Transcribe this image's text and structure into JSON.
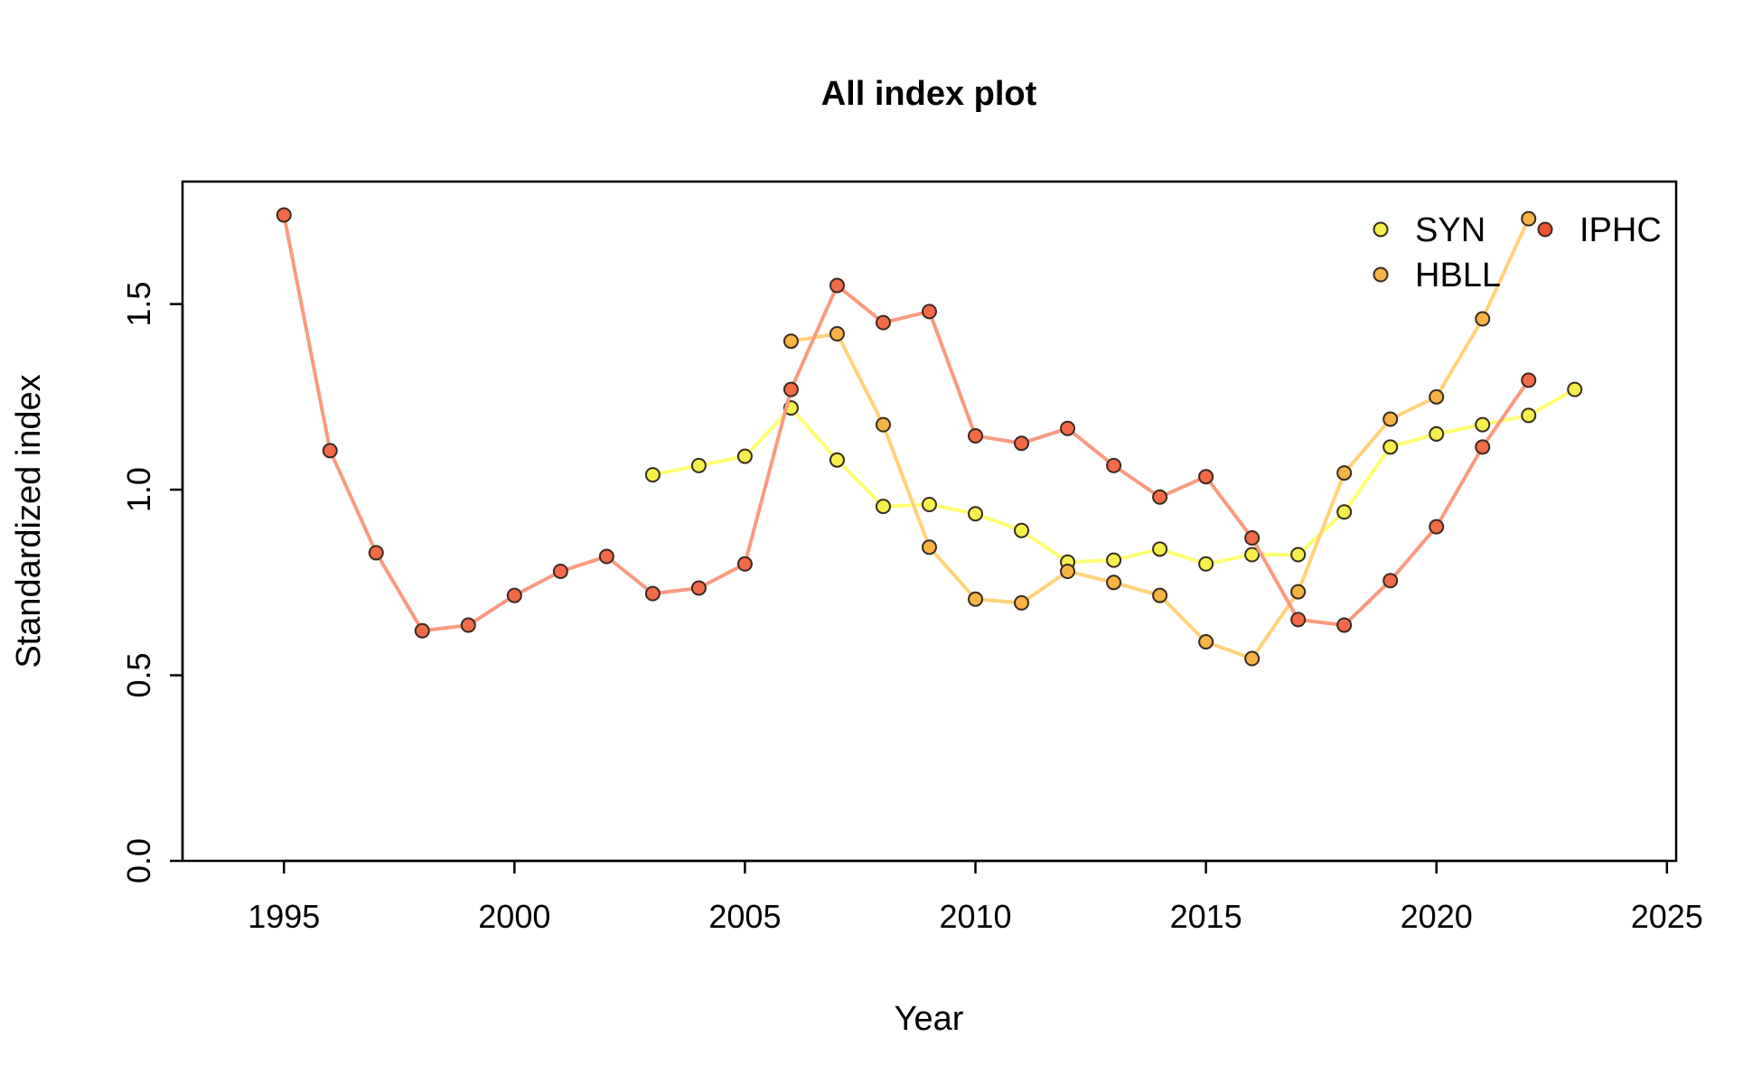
{
  "chart_data": {
    "type": "line",
    "title": "All index plot",
    "xlabel": "Year",
    "ylabel": "Standardized index",
    "xlim": [
      1992.8,
      2025.2
    ],
    "ylim": [
      0,
      1.83
    ],
    "xticks": [
      "1995",
      "2000",
      "2005",
      "2010",
      "2015",
      "2020",
      "2025"
    ],
    "yticks": [
      "0.0",
      "0.5",
      "1.0",
      "1.5"
    ],
    "grid": false,
    "legend_position": "top-right",
    "series": [
      {
        "name": "SYN",
        "line_color": "#FFFF73",
        "point_color": "#F5F04A",
        "x": [
          2003,
          2004,
          2005,
          2006,
          2007,
          2008,
          2009,
          2010,
          2011,
          2012,
          2013,
          2014,
          2015,
          2016,
          2017,
          2018,
          2019,
          2020,
          2021,
          2022,
          2023
        ],
        "y": [
          1.04,
          1.065,
          1.09,
          1.22,
          1.08,
          0.955,
          0.96,
          0.935,
          0.89,
          0.805,
          0.81,
          0.84,
          0.8,
          0.825,
          0.825,
          0.94,
          1.115,
          1.15,
          1.175,
          1.2,
          1.27
        ]
      },
      {
        "name": "HBLL",
        "line_color": "#FFD27A",
        "point_color": "#F6B445",
        "x": [
          2006,
          2007,
          2008,
          2009,
          2010,
          2011,
          2012,
          2013,
          2014,
          2015,
          2016,
          2017,
          2018,
          2019,
          2020,
          2021,
          2022
        ],
        "y": [
          1.4,
          1.42,
          1.175,
          0.845,
          0.705,
          0.695,
          0.78,
          0.75,
          0.715,
          0.59,
          0.545,
          0.725,
          1.045,
          1.19,
          1.25,
          1.46,
          1.73
        ]
      },
      {
        "name": "IPHC",
        "line_color": "#F99A80",
        "point_color": "#F26A48",
        "x": [
          1995,
          1996,
          1997,
          1998,
          1999,
          2000,
          2001,
          2002,
          2003,
          2004,
          2005,
          2006,
          2007,
          2008,
          2009,
          2010,
          2011,
          2012,
          2013,
          2014,
          2015,
          2016,
          2017,
          2018,
          2019,
          2020,
          2021,
          2022
        ],
        "y": [
          1.74,
          1.105,
          0.83,
          0.62,
          0.635,
          0.715,
          0.78,
          0.82,
          0.72,
          0.735,
          0.8,
          1.27,
          1.55,
          1.45,
          1.48,
          1.145,
          1.125,
          1.165,
          1.065,
          0.98,
          1.035,
          0.87,
          0.65,
          0.635,
          0.755,
          0.9,
          1.115,
          1.295
        ]
      }
    ],
    "legend": [
      {
        "label": "SYN",
        "color": "#F5F04A"
      },
      {
        "label": "HBLL",
        "color": "#F6B445"
      },
      {
        "label": "IPHC",
        "color": "#E8542D"
      }
    ]
  }
}
